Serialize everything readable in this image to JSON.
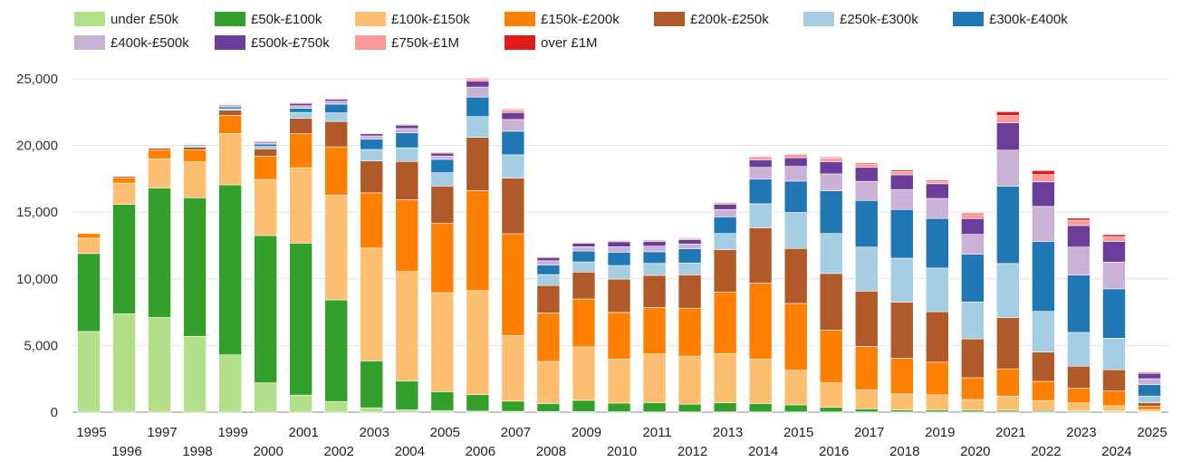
{
  "chart_data": {
    "type": "bar",
    "stacked": true,
    "title": "",
    "xlabel": "",
    "ylabel": "",
    "ylim": [
      0,
      25000
    ],
    "yticks": [
      "0",
      "5,000",
      "10,000",
      "15,000",
      "20,000",
      "25,000"
    ],
    "ytick_values": [
      0,
      5000,
      10000,
      15000,
      20000,
      25000
    ],
    "grid": true,
    "legend": "top",
    "categories": [
      "1995",
      "1996",
      "1997",
      "1998",
      "1999",
      "2000",
      "2001",
      "2002",
      "2003",
      "2004",
      "2005",
      "2006",
      "2007",
      "2008",
      "2009",
      "2010",
      "2011",
      "2012",
      "2013",
      "2014",
      "2015",
      "2016",
      "2017",
      "2018",
      "2019",
      "2020",
      "2021",
      "2022",
      "2023",
      "2024",
      "2025"
    ],
    "series": [
      {
        "name": "under £50k",
        "color": "#b2df8a",
        "values": [
          6050,
          7380,
          7100,
          5680,
          4300,
          2200,
          1280,
          800,
          330,
          180,
          120,
          80,
          60,
          50,
          40,
          30,
          20,
          20,
          20,
          20,
          20,
          20,
          20,
          20,
          20,
          20,
          20,
          20,
          20,
          20,
          10
        ]
      },
      {
        "name": "£50k-£100k",
        "color": "#33a02c",
        "values": [
          5850,
          8200,
          9700,
          10400,
          12750,
          11050,
          11400,
          7620,
          3520,
          2170,
          1420,
          1230,
          770,
          600,
          850,
          650,
          700,
          580,
          680,
          630,
          530,
          350,
          230,
          150,
          150,
          130,
          120,
          100,
          80,
          60,
          30
        ]
      },
      {
        "name": "£100k-£150k",
        "color": "#fdbf6f",
        "values": [
          1150,
          1600,
          2200,
          2700,
          3850,
          4200,
          5650,
          7850,
          8450,
          8200,
          7420,
          7800,
          4920,
          3150,
          4000,
          3300,
          3650,
          3600,
          3700,
          3330,
          2600,
          1830,
          1430,
          1200,
          1130,
          800,
          1060,
          750,
          600,
          400,
          150
        ]
      },
      {
        "name": "£150k-£200k",
        "color": "#ff7f00",
        "values": [
          350,
          400,
          650,
          900,
          1350,
          1750,
          2550,
          3630,
          4150,
          5380,
          5200,
          7500,
          7630,
          3650,
          3600,
          3500,
          3480,
          3600,
          4600,
          5700,
          5000,
          3950,
          3250,
          2680,
          2450,
          1630,
          2050,
          1440,
          1100,
          1100,
          250
        ]
      },
      {
        "name": "£200k-£250k",
        "color": "#b15928",
        "values": [
          40,
          100,
          150,
          200,
          400,
          550,
          1150,
          1900,
          2400,
          2870,
          2800,
          4000,
          4170,
          2050,
          2020,
          2500,
          2410,
          2500,
          3200,
          4150,
          4130,
          4250,
          4150,
          4200,
          3780,
          2910,
          3850,
          2200,
          1650,
          1600,
          270
        ]
      },
      {
        "name": "£250k-£300k",
        "color": "#a6cee3",
        "values": [
          20,
          30,
          40,
          80,
          100,
          180,
          450,
          650,
          850,
          1030,
          1000,
          1560,
          1750,
          820,
          760,
          1020,
          900,
          880,
          1200,
          1800,
          2700,
          3000,
          3300,
          3300,
          3280,
          2780,
          4050,
          3050,
          2530,
          2370,
          500
        ]
      },
      {
        "name": "£300k-£400k",
        "color": "#1f78b4",
        "values": [
          20,
          30,
          40,
          80,
          150,
          180,
          300,
          650,
          770,
          1120,
          1000,
          1460,
          1770,
          720,
          810,
          1000,
          870,
          1070,
          1250,
          1850,
          2350,
          3200,
          3500,
          3650,
          3720,
          3570,
          5800,
          5250,
          4300,
          3700,
          850
        ]
      },
      {
        "name": "£400k-£500k",
        "color": "#cab2d6",
        "values": [
          10,
          10,
          20,
          50,
          80,
          80,
          200,
          220,
          250,
          320,
          250,
          750,
          880,
          320,
          330,
          400,
          420,
          360,
          550,
          880,
          1100,
          1270,
          1430,
          1500,
          1500,
          1500,
          2700,
          2620,
          2100,
          2000,
          450
        ]
      },
      {
        "name": "£500k-£750k",
        "color": "#6a3d9a",
        "values": [
          10,
          10,
          20,
          50,
          80,
          100,
          180,
          160,
          170,
          250,
          220,
          460,
          520,
          240,
          260,
          380,
          360,
          340,
          400,
          550,
          650,
          900,
          1050,
          1100,
          1100,
          1180,
          2050,
          1840,
          1620,
          1560,
          400
        ]
      },
      {
        "name": "£750k-£1M",
        "color": "#fb9a99",
        "values": [
          5,
          10,
          20,
          20,
          30,
          40,
          60,
          50,
          50,
          80,
          80,
          150,
          200,
          60,
          80,
          100,
          110,
          100,
          130,
          200,
          250,
          300,
          250,
          250,
          200,
          300,
          550,
          550,
          400,
          350,
          100
        ]
      },
      {
        "name": "over £1M",
        "color": "#e31a1c",
        "values": [
          5,
          10,
          10,
          20,
          20,
          20,
          30,
          20,
          20,
          30,
          30,
          60,
          60,
          20,
          20,
          20,
          40,
          30,
          40,
          60,
          50,
          60,
          80,
          100,
          80,
          100,
          280,
          300,
          150,
          150,
          50
        ]
      }
    ]
  }
}
